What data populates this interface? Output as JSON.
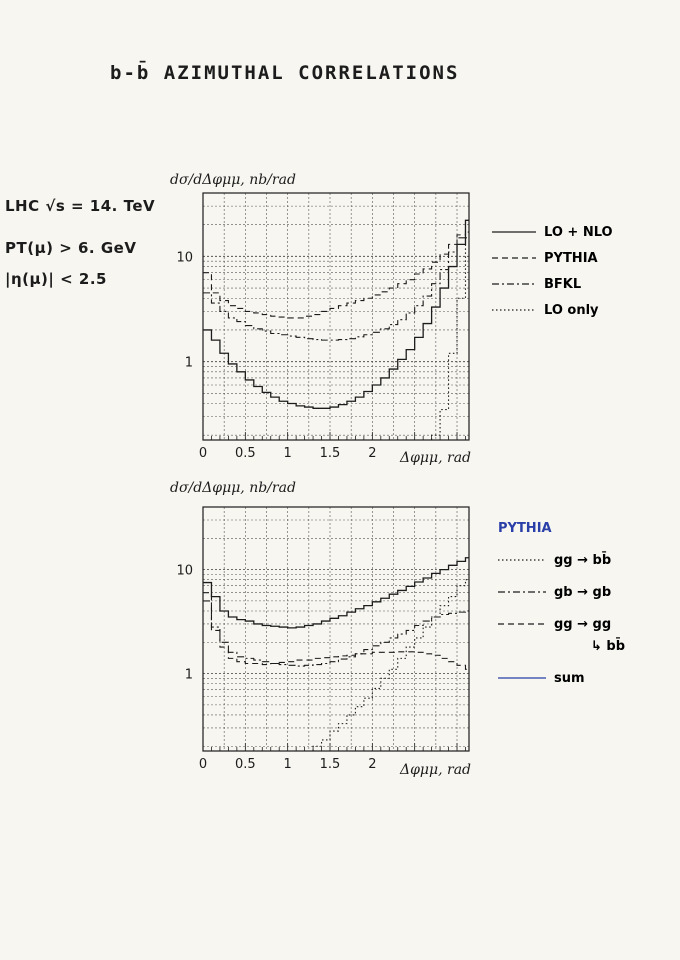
{
  "page": {
    "title": "b-b̄ AZIMUTHAL CORRELATIONS",
    "conditions": [
      "LHC  √s = 14. TeV",
      "PT(μ) > 6. GeV",
      "|η(μ)| < 2.5"
    ]
  },
  "chart_data": [
    {
      "type": "line",
      "step": true,
      "ylabel": "dσ/dΔφμμ,  nb/rad",
      "xlabel": "Δφμμ,  rad",
      "xlim": [
        0,
        3.14159
      ],
      "ylim": [
        0.18,
        40
      ],
      "yscale": "log",
      "xticks": [
        "0",
        "0.5",
        "1",
        "1.5",
        "2"
      ],
      "yticks": [
        "1",
        "10"
      ],
      "grid": true,
      "legend_position": "right",
      "series": [
        {
          "name": "LO + NLO",
          "style": "solid",
          "x": [
            0.0,
            0.1,
            0.2,
            0.3,
            0.4,
            0.5,
            0.6,
            0.7,
            0.8,
            0.9,
            1.0,
            1.1,
            1.2,
            1.3,
            1.4,
            1.5,
            1.6,
            1.7,
            1.8,
            1.9,
            2.0,
            2.1,
            2.2,
            2.3,
            2.4,
            2.5,
            2.6,
            2.7,
            2.8,
            2.9,
            3.0,
            3.1
          ],
          "y": [
            2.0,
            1.6,
            1.2,
            0.95,
            0.8,
            0.67,
            0.58,
            0.51,
            0.46,
            0.42,
            0.4,
            0.38,
            0.37,
            0.36,
            0.36,
            0.37,
            0.39,
            0.42,
            0.46,
            0.52,
            0.6,
            0.7,
            0.85,
            1.05,
            1.3,
            1.7,
            2.3,
            3.3,
            5.0,
            8.0,
            13.0,
            22.0
          ]
        },
        {
          "name": "PYTHIA",
          "style": "dashed",
          "x": [
            0.0,
            0.1,
            0.2,
            0.3,
            0.4,
            0.5,
            0.6,
            0.7,
            0.8,
            0.9,
            1.0,
            1.1,
            1.2,
            1.3,
            1.4,
            1.5,
            1.6,
            1.7,
            1.8,
            1.9,
            2.0,
            2.1,
            2.2,
            2.3,
            2.4,
            2.5,
            2.6,
            2.7,
            2.8,
            2.9,
            3.0,
            3.1
          ],
          "y": [
            7.0,
            4.5,
            3.8,
            3.4,
            3.2,
            3.0,
            2.9,
            2.8,
            2.7,
            2.65,
            2.6,
            2.6,
            2.7,
            2.8,
            3.0,
            3.2,
            3.4,
            3.6,
            3.8,
            4.0,
            4.3,
            4.6,
            5.0,
            5.5,
            6.0,
            6.8,
            7.6,
            8.8,
            10.5,
            13.0,
            16.0,
            18.0
          ]
        },
        {
          "name": "BFKL",
          "style": "dashdot",
          "x": [
            0.0,
            0.1,
            0.2,
            0.3,
            0.4,
            0.5,
            0.6,
            0.7,
            0.8,
            0.9,
            1.0,
            1.1,
            1.2,
            1.3,
            1.4,
            1.5,
            1.6,
            1.7,
            1.8,
            1.9,
            2.0,
            2.1,
            2.2,
            2.3,
            2.4,
            2.5,
            2.6,
            2.7,
            2.8,
            2.9,
            3.0,
            3.1
          ],
          "y": [
            4.5,
            3.6,
            3.0,
            2.6,
            2.4,
            2.2,
            2.05,
            1.95,
            1.85,
            1.8,
            1.75,
            1.7,
            1.65,
            1.62,
            1.6,
            1.6,
            1.62,
            1.65,
            1.72,
            1.8,
            1.9,
            2.05,
            2.25,
            2.5,
            2.9,
            3.4,
            4.2,
            5.5,
            7.5,
            11.0,
            15.0,
            17.0
          ]
        },
        {
          "name": "LO only",
          "style": "dotted",
          "x": [
            2.7,
            2.8,
            2.9,
            3.0,
            3.1
          ],
          "y": [
            0.2,
            0.35,
            1.2,
            4.0,
            15.0
          ]
        }
      ]
    },
    {
      "type": "line",
      "step": true,
      "ylabel": "dσ/dΔφμμ,  nb/rad",
      "xlabel": "Δφμμ,  rad",
      "xlim": [
        0,
        3.14159
      ],
      "ylim": [
        0.18,
        40
      ],
      "yscale": "log",
      "xticks": [
        "0",
        "0.5",
        "1",
        "1.5",
        "2"
      ],
      "yticks": [
        "1",
        "10"
      ],
      "grid": true,
      "legend_title": "PYTHIA",
      "legend_position": "right",
      "series": [
        {
          "name": "gg → bb̄",
          "style": "dotted",
          "x": [
            1.3,
            1.4,
            1.5,
            1.6,
            1.7,
            1.8,
            1.9,
            2.0,
            2.1,
            2.2,
            2.3,
            2.4,
            2.5,
            2.6,
            2.7,
            2.8,
            2.9,
            3.0,
            3.1
          ],
          "y": [
            0.2,
            0.23,
            0.28,
            0.33,
            0.4,
            0.48,
            0.58,
            0.72,
            0.9,
            1.1,
            1.4,
            1.8,
            2.2,
            2.8,
            3.5,
            4.5,
            5.5,
            7.0,
            8.0
          ]
        },
        {
          "name": "gb → gb",
          "style": "dashdot",
          "x": [
            0.0,
            0.1,
            0.2,
            0.3,
            0.4,
            0.5,
            0.6,
            0.7,
            0.8,
            0.9,
            1.0,
            1.1,
            1.2,
            1.3,
            1.4,
            1.5,
            1.6,
            1.7,
            1.8,
            1.9,
            2.0,
            2.1,
            2.2,
            2.3,
            2.4,
            2.5,
            2.6,
            2.7,
            2.8,
            2.9,
            3.0,
            3.1
          ],
          "y": [
            5.0,
            2.8,
            2.0,
            1.6,
            1.45,
            1.4,
            1.35,
            1.3,
            1.25,
            1.22,
            1.2,
            1.18,
            1.2,
            1.22,
            1.25,
            1.3,
            1.38,
            1.45,
            1.55,
            1.7,
            1.85,
            2.0,
            2.2,
            2.4,
            2.6,
            2.9,
            3.2,
            3.5,
            3.7,
            3.8,
            3.9,
            4.0
          ]
        },
        {
          "name": "gg → gg",
          "style": "dashed",
          "x": [
            0.0,
            0.1,
            0.2,
            0.3,
            0.4,
            0.5,
            0.6,
            0.7,
            0.8,
            0.9,
            1.0,
            1.1,
            1.2,
            1.3,
            1.4,
            1.5,
            1.6,
            1.7,
            1.8,
            1.9,
            2.0,
            2.1,
            2.2,
            2.3,
            2.4,
            2.5,
            2.6,
            2.7,
            2.8,
            2.9,
            3.0,
            3.1
          ],
          "y": [
            6.0,
            2.6,
            1.8,
            1.4,
            1.3,
            1.25,
            1.25,
            1.22,
            1.25,
            1.28,
            1.3,
            1.35,
            1.35,
            1.4,
            1.42,
            1.45,
            1.48,
            1.5,
            1.55,
            1.55,
            1.6,
            1.6,
            1.6,
            1.62,
            1.62,
            1.6,
            1.55,
            1.5,
            1.4,
            1.3,
            1.2,
            1.1
          ]
        },
        {
          "name": "sum",
          "style": "solid",
          "x": [
            0.0,
            0.1,
            0.2,
            0.3,
            0.4,
            0.5,
            0.6,
            0.7,
            0.8,
            0.9,
            1.0,
            1.1,
            1.2,
            1.3,
            1.4,
            1.5,
            1.6,
            1.7,
            1.8,
            1.9,
            2.0,
            2.1,
            2.2,
            2.3,
            2.4,
            2.5,
            2.6,
            2.7,
            2.8,
            2.9,
            3.0,
            3.1
          ],
          "y": [
            7.5,
            5.5,
            4.0,
            3.5,
            3.3,
            3.2,
            3.0,
            2.9,
            2.85,
            2.8,
            2.75,
            2.8,
            2.9,
            3.0,
            3.2,
            3.4,
            3.6,
            3.9,
            4.2,
            4.5,
            4.9,
            5.3,
            5.8,
            6.3,
            6.9,
            7.6,
            8.3,
            9.2,
            10.0,
            11.0,
            12.0,
            13.0
          ]
        }
      ],
      "annotation": "↳ bb̄"
    }
  ]
}
